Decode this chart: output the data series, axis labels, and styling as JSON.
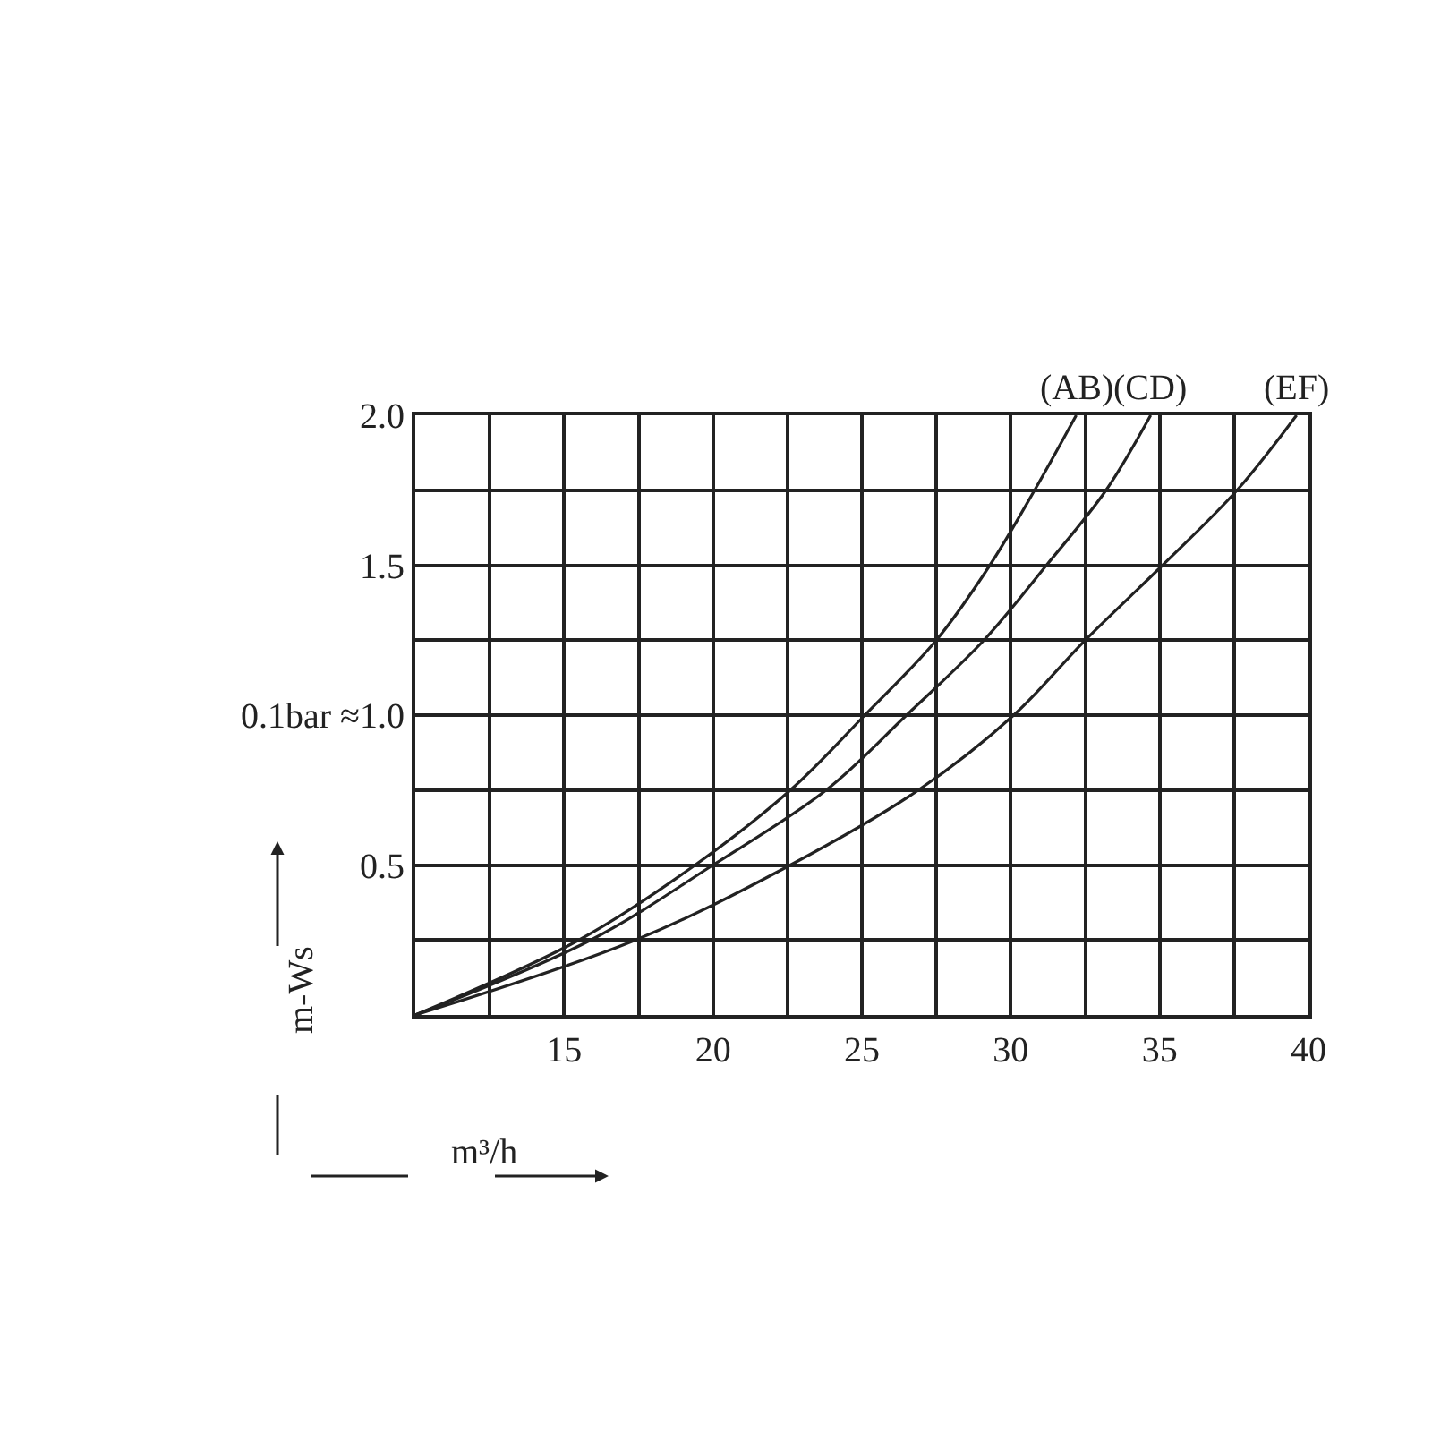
{
  "chart_data": {
    "type": "line",
    "xlabel": "m³/h",
    "ylabel": "m-Ws",
    "xlim": [
      10,
      40
    ],
    "xticks": [
      15,
      20,
      25,
      30,
      35,
      40
    ],
    "ylim": [
      0,
      2.0
    ],
    "yticks": [
      {
        "value": 0.5,
        "label": "0.5"
      },
      {
        "value": 1.0,
        "label": "0.1bar ≈1.0"
      },
      {
        "value": 1.5,
        "label": "1.5"
      },
      {
        "value": 2.0,
        "label": "2.0"
      }
    ],
    "grid": true,
    "legend": false,
    "marker": "none",
    "line_style": "solid",
    "series": [
      {
        "name": "(AB)",
        "color": "#222222",
        "x": [
          10,
          15.5,
          19.4,
          22.6,
          25.1,
          27.5,
          29.3,
          30.8,
          32.2
        ],
        "values": [
          0,
          0.25,
          0.5,
          0.75,
          1.0,
          1.25,
          1.5,
          1.75,
          2.0
        ]
      },
      {
        "name": "(CD)",
        "color": "#222222",
        "x": [
          10,
          15.9,
          20.0,
          23.8,
          26.5,
          29.1,
          31.2,
          33.2,
          34.7
        ],
        "values": [
          0,
          0.25,
          0.5,
          0.75,
          1.0,
          1.25,
          1.5,
          1.75,
          2.0
        ]
      },
      {
        "name": "(EF)",
        "color": "#222222",
        "x": [
          10,
          17.4,
          22.6,
          26.9,
          30.1,
          32.5,
          35.1,
          37.6,
          39.6
        ],
        "values": [
          0,
          0.25,
          0.5,
          0.75,
          1.0,
          1.25,
          1.5,
          1.75,
          2.0
        ]
      }
    ]
  }
}
